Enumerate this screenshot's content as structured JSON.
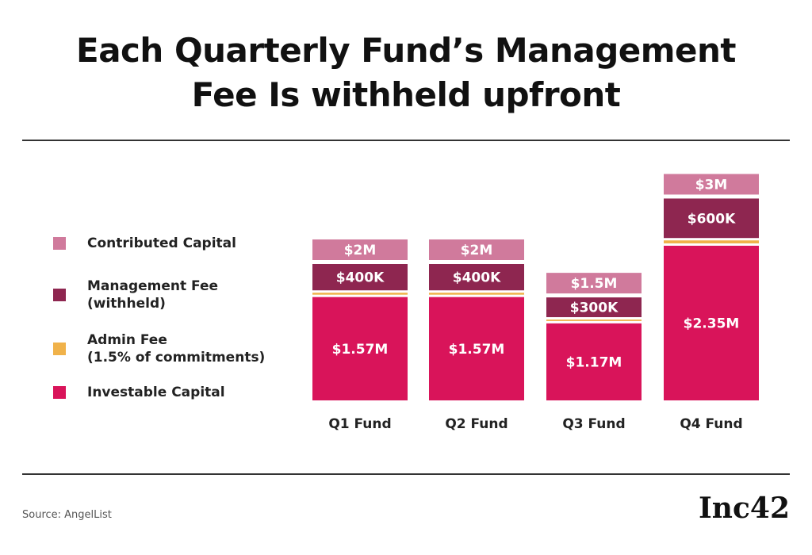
{
  "chart_data": {
    "type": "stacked-bar",
    "title": "Each Quarterly Fund’s Management\nFee Is withheld upfront",
    "categories": [
      "Q1 Fund",
      "Q2 Fund",
      "Q3 Fund",
      "Q4 Fund"
    ],
    "series": [
      {
        "name": "Contributed Capital",
        "color": "#d07a9c",
        "values": [
          2000000,
          2000000,
          1500000,
          3000000
        ],
        "value_labels": [
          "$2M",
          "$2M",
          "$1.5M",
          "$3M"
        ]
      },
      {
        "name": "Management Fee\n(withheld)",
        "color": "#8e2650",
        "values": [
          400000,
          400000,
          300000,
          600000
        ],
        "value_labels": [
          "$400K",
          "$400K",
          "$300K",
          "$600K"
        ]
      },
      {
        "name": "Admin Fee\n(1.5% of commitments)",
        "color": "#f0b24a",
        "values": [
          30000,
          30000,
          22500,
          45000
        ]
      },
      {
        "name": "Investable Capital",
        "color": "#d9145a",
        "values": [
          1570000,
          1570000,
          1170000,
          2350000
        ],
        "value_labels": [
          "$1.57M",
          "$1.57M",
          "$1.17M",
          "$2.35M"
        ]
      }
    ],
    "source": "Source: AngelList",
    "logo": "Inc42"
  }
}
